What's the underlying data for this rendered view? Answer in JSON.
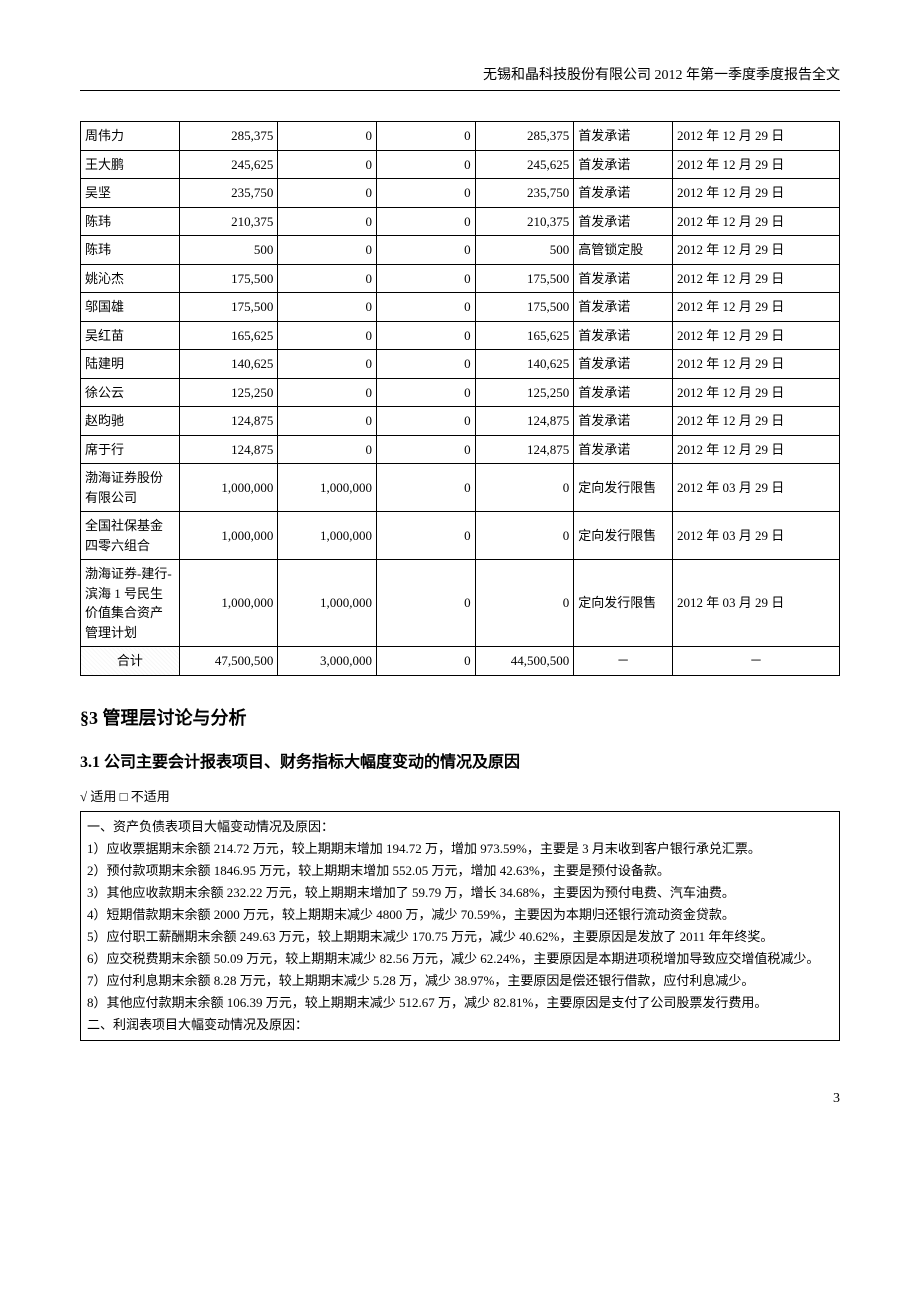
{
  "header": {
    "title": "无锡和晶科技股份有限公司 2012 年第一季度季度报告全文"
  },
  "table": {
    "rows": [
      {
        "name": "周伟力",
        "c1": "285,375",
        "c2": "0",
        "c3": "0",
        "c4": "285,375",
        "type": "首发承诺",
        "date": "2012 年 12 月 29 日"
      },
      {
        "name": "王大鹏",
        "c1": "245,625",
        "c2": "0",
        "c3": "0",
        "c4": "245,625",
        "type": "首发承诺",
        "date": "2012 年 12 月 29 日"
      },
      {
        "name": "吴坚",
        "c1": "235,750",
        "c2": "0",
        "c3": "0",
        "c4": "235,750",
        "type": "首发承诺",
        "date": "2012 年 12 月 29 日"
      },
      {
        "name": "陈玮",
        "c1": "210,375",
        "c2": "0",
        "c3": "0",
        "c4": "210,375",
        "type": "首发承诺",
        "date": "2012 年 12 月 29 日"
      },
      {
        "name": "陈玮",
        "c1": "500",
        "c2": "0",
        "c3": "0",
        "c4": "500",
        "type": "高管锁定股",
        "date": "2012 年 12 月 29 日"
      },
      {
        "name": "姚沁杰",
        "c1": "175,500",
        "c2": "0",
        "c3": "0",
        "c4": "175,500",
        "type": "首发承诺",
        "date": "2012 年 12 月 29 日"
      },
      {
        "name": "邬国雄",
        "c1": "175,500",
        "c2": "0",
        "c3": "0",
        "c4": "175,500",
        "type": "首发承诺",
        "date": "2012 年 12 月 29 日"
      },
      {
        "name": "吴红苗",
        "c1": "165,625",
        "c2": "0",
        "c3": "0",
        "c4": "165,625",
        "type": "首发承诺",
        "date": "2012 年 12 月 29 日"
      },
      {
        "name": "陆建明",
        "c1": "140,625",
        "c2": "0",
        "c3": "0",
        "c4": "140,625",
        "type": "首发承诺",
        "date": "2012 年 12 月 29 日"
      },
      {
        "name": "徐公云",
        "c1": "125,250",
        "c2": "0",
        "c3": "0",
        "c4": "125,250",
        "type": "首发承诺",
        "date": "2012 年 12 月 29 日"
      },
      {
        "name": "赵昀驰",
        "c1": "124,875",
        "c2": "0",
        "c3": "0",
        "c4": "124,875",
        "type": "首发承诺",
        "date": "2012 年 12 月 29 日"
      },
      {
        "name": "席于行",
        "c1": "124,875",
        "c2": "0",
        "c3": "0",
        "c4": "124,875",
        "type": "首发承诺",
        "date": "2012 年 12 月 29 日"
      },
      {
        "name": "渤海证券股份有限公司",
        "c1": "1,000,000",
        "c2": "1,000,000",
        "c3": "0",
        "c4": "0",
        "type": "定向发行限售",
        "date": "2012 年 03 月 29 日"
      },
      {
        "name": "全国社保基金四零六组合",
        "c1": "1,000,000",
        "c2": "1,000,000",
        "c3": "0",
        "c4": "0",
        "type": "定向发行限售",
        "date": "2012 年 03 月 29 日"
      },
      {
        "name": "渤海证券-建行-滨海 1 号民生价值集合资产管理计划",
        "c1": "1,000,000",
        "c2": "1,000,000",
        "c3": "0",
        "c4": "0",
        "type": "定向发行限售",
        "date": "2012 年 03 月 29 日"
      }
    ],
    "total": {
      "label": "合计",
      "c1": "47,500,500",
      "c2": "3,000,000",
      "c3": "0",
      "c4": "44,500,500",
      "type": "－",
      "date": "－"
    }
  },
  "section3": {
    "title": "§3 管理层讨论与分析",
    "sub31_title": "3.1 公司主要会计报表项目、财务指标大幅度变动的情况及原因",
    "applicable": "√ 适用 □ 不适用",
    "lines": [
      "一、资产负债表项目大幅变动情况及原因：",
      "1）应收票据期末余额 214.72 万元，较上期期末增加 194.72 万，增加 973.59%，主要是 3 月末收到客户银行承兑汇票。",
      "2）预付款项期末余额 1846.95 万元，较上期期末增加 552.05 万元，增加 42.63%，主要是预付设备款。",
      "3）其他应收款期末余额 232.22 万元，较上期期末增加了 59.79 万，增长 34.68%，主要因为预付电费、汽车油费。",
      "4）短期借款期末余额 2000 万元，较上期期末减少 4800 万，减少 70.59%，主要因为本期归还银行流动资金贷款。",
      "5）应付职工薪酬期末余额 249.63 万元，较上期期末减少 170.75 万元，减少 40.62%，主要原因是发放了 2011 年年终奖。",
      "6）应交税费期末余额 50.09 万元，较上期期末减少 82.56 万元，减少 62.24%，主要原因是本期进项税增加导致应交增值税减少。",
      "7）应付利息期末余额 8.28 万元，较上期期末减少 5.28 万，减少 38.97%，主要原因是偿还银行借款，应付利息减少。",
      "8）其他应付款期末余额 106.39 万元，较上期期末减少 512.67 万，减少 82.81%，主要原因是支付了公司股票发行费用。",
      "二、利润表项目大幅变动情况及原因："
    ]
  },
  "page_number": "3"
}
